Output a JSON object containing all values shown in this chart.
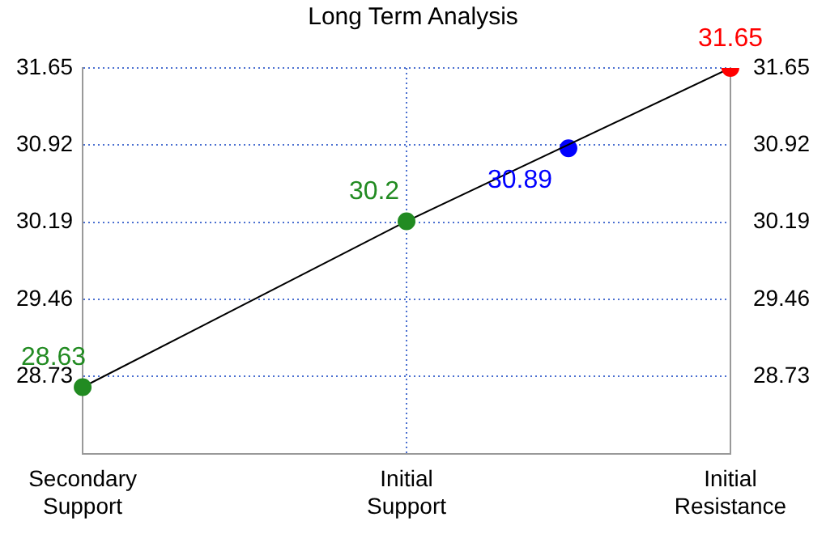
{
  "chart_data": {
    "type": "line",
    "title": "Long Term Analysis",
    "categories": [
      "Secondary Support",
      null,
      "Initial Support",
      null,
      "Initial Resistance"
    ],
    "ylim": [
      28.0,
      31.65
    ],
    "yticks": [
      28.73,
      29.46,
      30.19,
      30.92,
      31.65
    ],
    "y2lim": [
      28.0,
      31.65
    ],
    "y2ticks": [
      28.73,
      29.46,
      30.19,
      30.92,
      31.65
    ],
    "series": [
      {
        "color": "#000000",
        "colors": [
          "#228b22",
          null,
          "#228b22",
          null,
          "#ff0000"
        ],
        "values": [
          28.63,
          null,
          30.2,
          null,
          31.65
        ]
      },
      {
        "type": "scatter",
        "color": "#0000ff",
        "values": [
          null,
          null,
          null,
          30.89,
          null
        ]
      }
    ],
    "data_labels": true,
    "grid": true,
    "legend": false,
    "marker": "circle"
  }
}
